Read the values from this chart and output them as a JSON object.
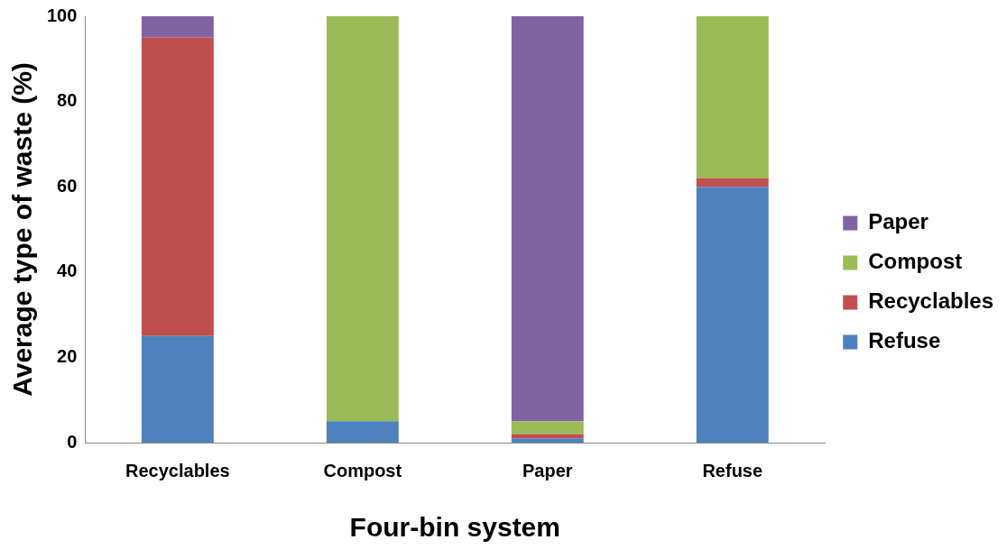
{
  "chart_data": {
    "type": "bar",
    "stacked": true,
    "xlabel": "Four-bin system",
    "ylabel": "Average type of waste (%)",
    "categories": [
      "Recyclables",
      "Compost",
      "Paper",
      "Refuse"
    ],
    "series": [
      {
        "name": "Refuse",
        "color": "#4f81bd",
        "values": [
          25,
          5,
          1,
          60
        ]
      },
      {
        "name": "Recyclables",
        "color": "#c0504d",
        "values": [
          70,
          0,
          1,
          2
        ]
      },
      {
        "name": "Compost",
        "color": "#9bbb59",
        "values": [
          0,
          95,
          3,
          38
        ]
      },
      {
        "name": "Paper",
        "color": "#8064a2",
        "values": [
          5,
          0,
          95,
          0
        ]
      }
    ],
    "ylim": [
      0,
      100
    ],
    "yticks": [
      0,
      20,
      40,
      60,
      80,
      100
    ],
    "grid": false,
    "legend": "right"
  }
}
